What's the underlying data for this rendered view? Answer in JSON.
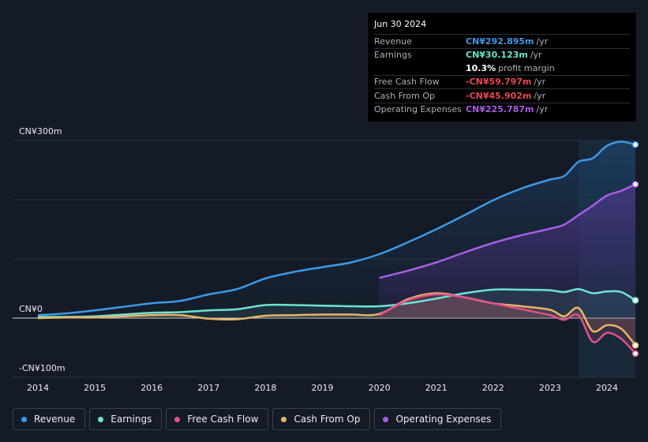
{
  "tooltip": {
    "date": "Jun 30 2024",
    "rows": [
      {
        "label": "Revenue",
        "value": "CN¥292.895m",
        "unit": "/yr",
        "color": "#3b9ae8"
      },
      {
        "label": "Earnings",
        "value": "CN¥30.123m",
        "unit": "/yr",
        "color": "#6ce3d0"
      },
      {
        "label": "",
        "value": "10.3%",
        "unit": "profit margin",
        "color": "#ffffff"
      },
      {
        "label": "Free Cash Flow",
        "value": "-CN¥59.797m",
        "unit": "/yr",
        "color": "#e84850"
      },
      {
        "label": "Cash From Op",
        "value": "-CN¥45.902m",
        "unit": "/yr",
        "color": "#e84850"
      },
      {
        "label": "Operating Expenses",
        "value": "CN¥225.787m",
        "unit": "/yr",
        "color": "#a95de8"
      }
    ]
  },
  "legend": [
    {
      "label": "Revenue",
      "color": "#3b9ae8"
    },
    {
      "label": "Earnings",
      "color": "#6ce3d0"
    },
    {
      "label": "Free Cash Flow",
      "color": "#e0508a"
    },
    {
      "label": "Cash From Op",
      "color": "#e8b468"
    },
    {
      "label": "Operating Expenses",
      "color": "#a95de8"
    }
  ],
  "chart_data": {
    "type": "area",
    "title": "",
    "xlabel": "",
    "ylabel": "",
    "y_tick_labels": [
      "CN¥300m",
      "CN¥0",
      "-CN¥100m"
    ],
    "y_ticks": [
      300,
      0,
      -100
    ],
    "ylim": [
      -100,
      300
    ],
    "xlim": [
      2014,
      2024.5
    ],
    "x_tick_labels": [
      "2014",
      "2015",
      "2016",
      "2017",
      "2018",
      "2019",
      "2020",
      "2021",
      "2022",
      "2023",
      "2024"
    ],
    "x_ticks": [
      2014,
      2015,
      2016,
      2017,
      2018,
      2019,
      2020,
      2021,
      2022,
      2023,
      2024
    ],
    "forecast_region_start": 2023.5,
    "series": [
      {
        "name": "Revenue",
        "color": "#3b9ae8",
        "x": [
          2014,
          2014.5,
          2015,
          2015.5,
          2016,
          2016.5,
          2017,
          2017.5,
          2018,
          2018.5,
          2019,
          2019.5,
          2020,
          2020.5,
          2021,
          2021.5,
          2022,
          2022.5,
          2023,
          2023.25,
          2023.5,
          2023.75,
          2024,
          2024.25,
          2024.5
        ],
        "values": [
          5,
          8,
          13,
          19,
          25,
          29,
          40,
          49,
          67,
          78,
          86,
          94,
          108,
          128,
          150,
          174,
          199,
          219,
          234,
          240,
          264,
          270,
          291,
          298,
          293
        ]
      },
      {
        "name": "Earnings",
        "color": "#6ce3d0",
        "x": [
          2014,
          2014.5,
          2015,
          2015.5,
          2016,
          2016.5,
          2017,
          2017.5,
          2018,
          2018.5,
          2019,
          2019.5,
          2020,
          2020.5,
          2021,
          2021.5,
          2022,
          2022.5,
          2023,
          2023.25,
          2023.5,
          2023.75,
          2024,
          2024.25,
          2024.5
        ],
        "values": [
          2,
          2,
          3,
          6,
          9,
          10,
          13,
          15,
          22,
          22,
          21,
          20,
          20,
          25,
          33,
          42,
          48,
          48,
          47,
          44,
          49,
          42,
          45,
          44,
          30
        ]
      },
      {
        "name": "Free Cash Flow",
        "color": "#e0508a",
        "x": [
          2020,
          2020.5,
          2021,
          2021.5,
          2022,
          2022.5,
          2023,
          2023.25,
          2023.5,
          2023.75,
          2024,
          2024.25,
          2024.5
        ],
        "values": [
          5,
          30,
          40,
          35,
          25,
          15,
          5,
          -3,
          5,
          -40,
          -25,
          -35,
          -60
        ]
      },
      {
        "name": "Cash From Op",
        "color": "#e8b468",
        "x": [
          2014,
          2014.5,
          2015,
          2015.5,
          2016,
          2016.5,
          2017,
          2017.5,
          2018,
          2018.5,
          2019,
          2019.5,
          2020,
          2020.5,
          2021,
          2021.5,
          2022,
          2022.5,
          2023,
          2023.25,
          2023.5,
          2023.75,
          2024,
          2024.25,
          2024.5
        ],
        "values": [
          0,
          1,
          1,
          3,
          5,
          5,
          -1,
          -2,
          4,
          5,
          6,
          6,
          7,
          32,
          42,
          35,
          25,
          20,
          14,
          3,
          17,
          -22,
          -12,
          -18,
          -46
        ]
      },
      {
        "name": "Operating Expenses",
        "color": "#a95de8",
        "x": [
          2020,
          2020.5,
          2021,
          2021.5,
          2022,
          2022.5,
          2023,
          2023.25,
          2023.5,
          2023.75,
          2024,
          2024.25,
          2024.5
        ],
        "values": [
          68,
          80,
          94,
          111,
          127,
          140,
          151,
          158,
          174,
          190,
          207,
          215,
          226
        ]
      }
    ]
  }
}
